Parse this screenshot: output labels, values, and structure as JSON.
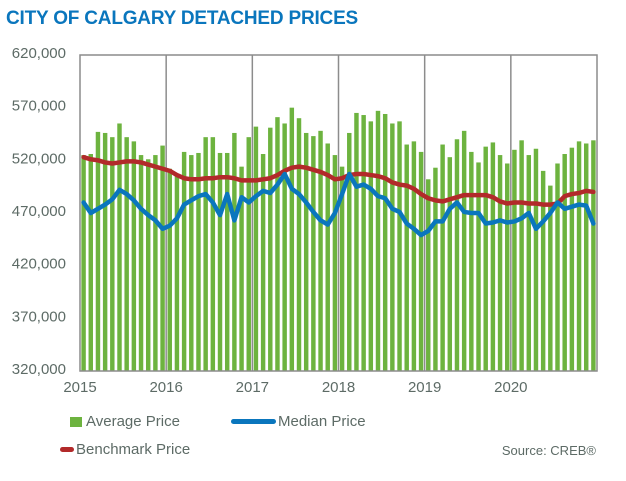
{
  "title": "CITY OF CALGARY DETACHED PRICES",
  "source": "Source: CREB®",
  "colors": {
    "title": "#0a76bd",
    "average": "#6db33f",
    "median": "#0a76bd",
    "benchmark": "#b22a2a",
    "axis": "#8c8c8c",
    "text": "#5d6b66"
  },
  "legend": {
    "average": "Average Price",
    "median": "Median Price",
    "benchmark": "Benchmark Price"
  },
  "chart_data": {
    "type": "bar+line",
    "title": "CITY OF CALGARY DETACHED PRICES",
    "xlabel": "",
    "ylabel": "",
    "ylim": [
      320000,
      620000
    ],
    "yticks": [
      620000,
      570000,
      520000,
      470000,
      420000,
      370000,
      320000
    ],
    "ytick_labels": [
      "620,000",
      "570,000",
      "520,000",
      "470,000",
      "420,000",
      "370,000",
      "320,000"
    ],
    "xtick_labels": [
      "2015",
      "2016",
      "2017",
      "2018",
      "2019",
      "2020"
    ],
    "years": [
      2015,
      2016,
      2017,
      2018,
      2019,
      2020
    ],
    "months_per_year": 12,
    "grid": "vertical year dividers",
    "legend_position": "bottom",
    "series": [
      {
        "name": "Average Price",
        "kind": "bar",
        "values": [
          525000,
          526000,
          547000,
          546000,
          542000,
          555000,
          542000,
          538000,
          525000,
          521000,
          525000,
          534000,
          512000,
          505000,
          528000,
          525000,
          527000,
          542000,
          542000,
          527000,
          527000,
          546000,
          514000,
          542000,
          552000,
          526000,
          551000,
          561000,
          555000,
          570000,
          560000,
          546000,
          543000,
          548000,
          536000,
          525000,
          514000,
          546000,
          565000,
          563000,
          557000,
          567000,
          564000,
          555000,
          557000,
          535000,
          538000,
          528000,
          502000,
          513000,
          535000,
          523000,
          540000,
          548000,
          528000,
          518000,
          533000,
          537000,
          525000,
          517000,
          530000,
          539000,
          525000,
          531000,
          510000,
          496000,
          517000,
          526000,
          532000,
          538000,
          536000,
          539000
        ]
      },
      {
        "name": "Median Price",
        "kind": "line",
        "values": [
          480000,
          470000,
          474000,
          478000,
          483000,
          492000,
          488000,
          482000,
          474000,
          468000,
          463000,
          455000,
          458000,
          465000,
          478000,
          482000,
          486000,
          488000,
          480000,
          468000,
          488000,
          463000,
          485000,
          480000,
          486000,
          491000,
          489000,
          497000,
          507000,
          493000,
          488000,
          480000,
          471000,
          463000,
          459000,
          470000,
          488000,
          507000,
          495000,
          497000,
          493000,
          486000,
          484000,
          474000,
          471000,
          460000,
          455000,
          449000,
          453000,
          462000,
          462000,
          474000,
          480000,
          471000,
          470000,
          470000,
          460000,
          461000,
          463000,
          461000,
          462000,
          465000,
          470000,
          455000,
          462000,
          470000,
          480000,
          474000,
          476000,
          478000,
          477000,
          460000
        ]
      },
      {
        "name": "Benchmark Price",
        "kind": "line",
        "values": [
          523000,
          521000,
          520000,
          518000,
          517000,
          518000,
          519000,
          519000,
          518000,
          516000,
          514000,
          512000,
          510000,
          506000,
          503000,
          502000,
          502000,
          503000,
          503000,
          504000,
          504000,
          503000,
          501000,
          501000,
          501000,
          502000,
          503000,
          506000,
          510000,
          513000,
          514000,
          513000,
          511000,
          509000,
          506000,
          502000,
          503000,
          506000,
          507000,
          507000,
          506000,
          505000,
          503000,
          499000,
          497000,
          496000,
          493000,
          488000,
          484000,
          482000,
          481000,
          483000,
          485000,
          487000,
          487000,
          487000,
          487000,
          485000,
          481000,
          479000,
          480000,
          480000,
          479000,
          479000,
          478000,
          478000,
          479000,
          486000,
          488000,
          489000,
          491000,
          490000
        ]
      }
    ]
  }
}
